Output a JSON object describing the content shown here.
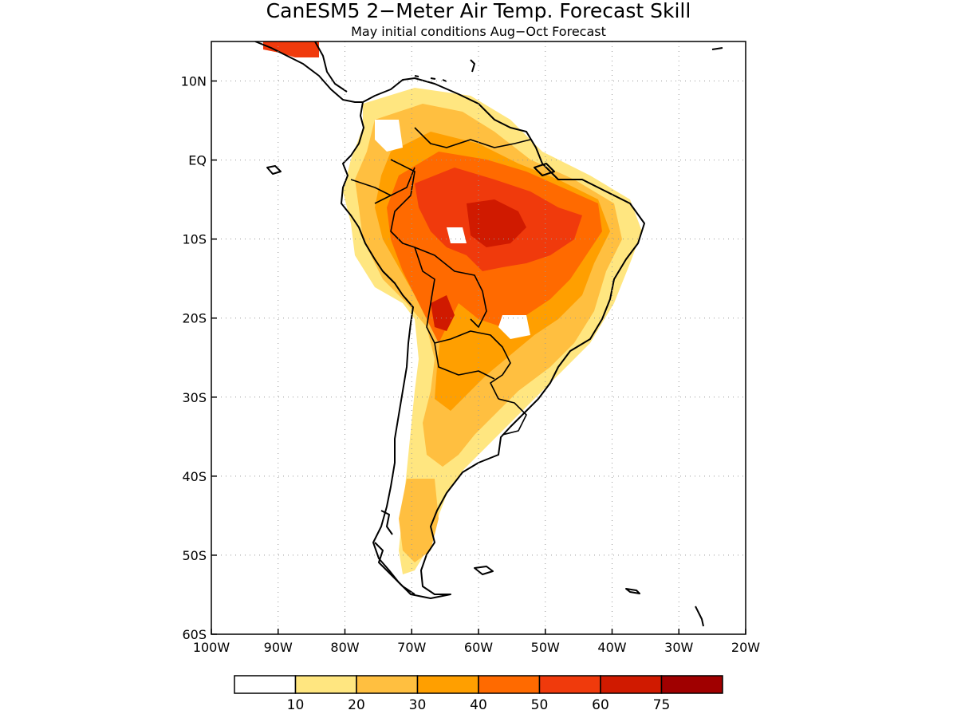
{
  "title": "CanESM5 2−Meter Air Temp. Forecast Skill",
  "subtitle": "May initial conditions  Aug−Oct Forecast",
  "map": {
    "lon_range": [
      -100,
      -20
    ],
    "lat_range": [
      -60,
      15
    ],
    "grid": "dotted",
    "x_ticks": [
      {
        "value": -100,
        "label": "100W"
      },
      {
        "value": -90,
        "label": "90W"
      },
      {
        "value": -80,
        "label": "80W"
      },
      {
        "value": -70,
        "label": "70W"
      },
      {
        "value": -60,
        "label": "60W"
      },
      {
        "value": -50,
        "label": "50W"
      },
      {
        "value": -40,
        "label": "40W"
      },
      {
        "value": -30,
        "label": "30W"
      },
      {
        "value": -20,
        "label": "20W"
      }
    ],
    "y_ticks": [
      {
        "value": 10,
        "label": "10N"
      },
      {
        "value": 0,
        "label": "EQ"
      },
      {
        "value": -10,
        "label": "10S"
      },
      {
        "value": -20,
        "label": "20S"
      },
      {
        "value": -30,
        "label": "30S"
      },
      {
        "value": -40,
        "label": "40S"
      },
      {
        "value": -50,
        "label": "50S"
      },
      {
        "value": -60,
        "label": "60S"
      }
    ]
  },
  "legend": {
    "bins": [
      {
        "color": "#ffffff"
      },
      {
        "color": "#ffe680"
      },
      {
        "color": "#ffbf40"
      },
      {
        "color": "#ff9f00"
      },
      {
        "color": "#ff6a00"
      },
      {
        "color": "#f03a0c"
      },
      {
        "color": "#d01a00"
      },
      {
        "color": "#a00000"
      }
    ],
    "labels": [
      "10",
      "20",
      "30",
      "40",
      "50",
      "60",
      "75"
    ]
  }
}
